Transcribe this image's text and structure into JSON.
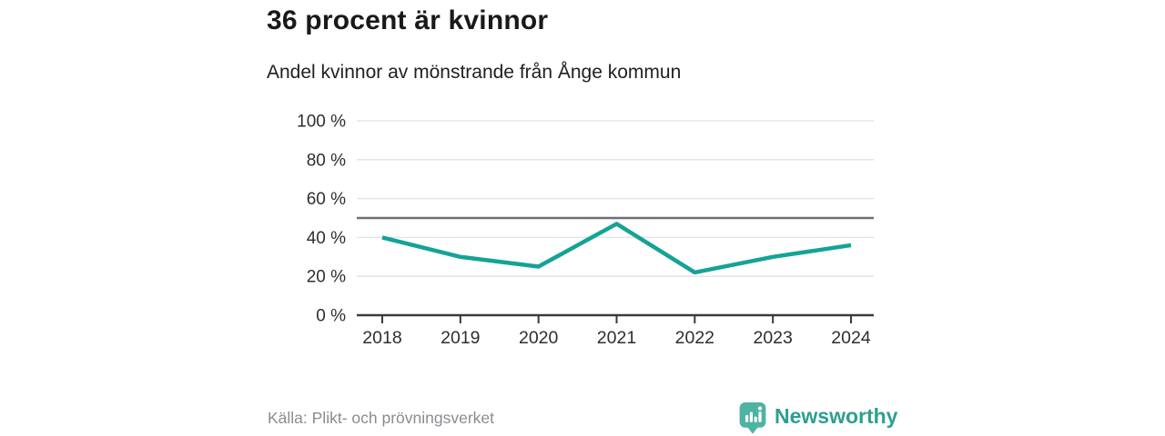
{
  "header": {
    "title": "36 procent är kvinnor",
    "subtitle": "Andel kvinnor av mönstrande från Ånge kommun"
  },
  "chart_data": {
    "type": "line",
    "title": "36 procent är kvinnor",
    "subtitle": "Andel kvinnor av mönstrande från Ånge kommun",
    "categories": [
      "2018",
      "2019",
      "2020",
      "2021",
      "2022",
      "2023",
      "2024"
    ],
    "series": [
      {
        "name": "Andel kvinnor av mönstrande",
        "values": [
          40,
          30,
          25,
          47,
          22,
          30,
          36
        ]
      }
    ],
    "xlabel": "",
    "ylabel": "",
    "ylim": [
      0,
      100
    ],
    "yticks": [
      0,
      20,
      40,
      60,
      80,
      100
    ],
    "ytick_suffix": " %",
    "reference_line": 50,
    "grid": true,
    "legend_position": "none",
    "line_color": "#14a396"
  },
  "footer": {
    "source": "Källa: Plikt- och prövningsverket",
    "brand": "Newsworthy"
  },
  "colors": {
    "line": "#14a396",
    "grid": "#e1e1e1",
    "reference": "#6e6e76",
    "axis": "#3a3a3a",
    "tick_text": "#2e2e2e",
    "source_text": "#8b8b92",
    "brand_teal": "#2d9f90",
    "brand_icon_teal": "#4db3a2"
  }
}
